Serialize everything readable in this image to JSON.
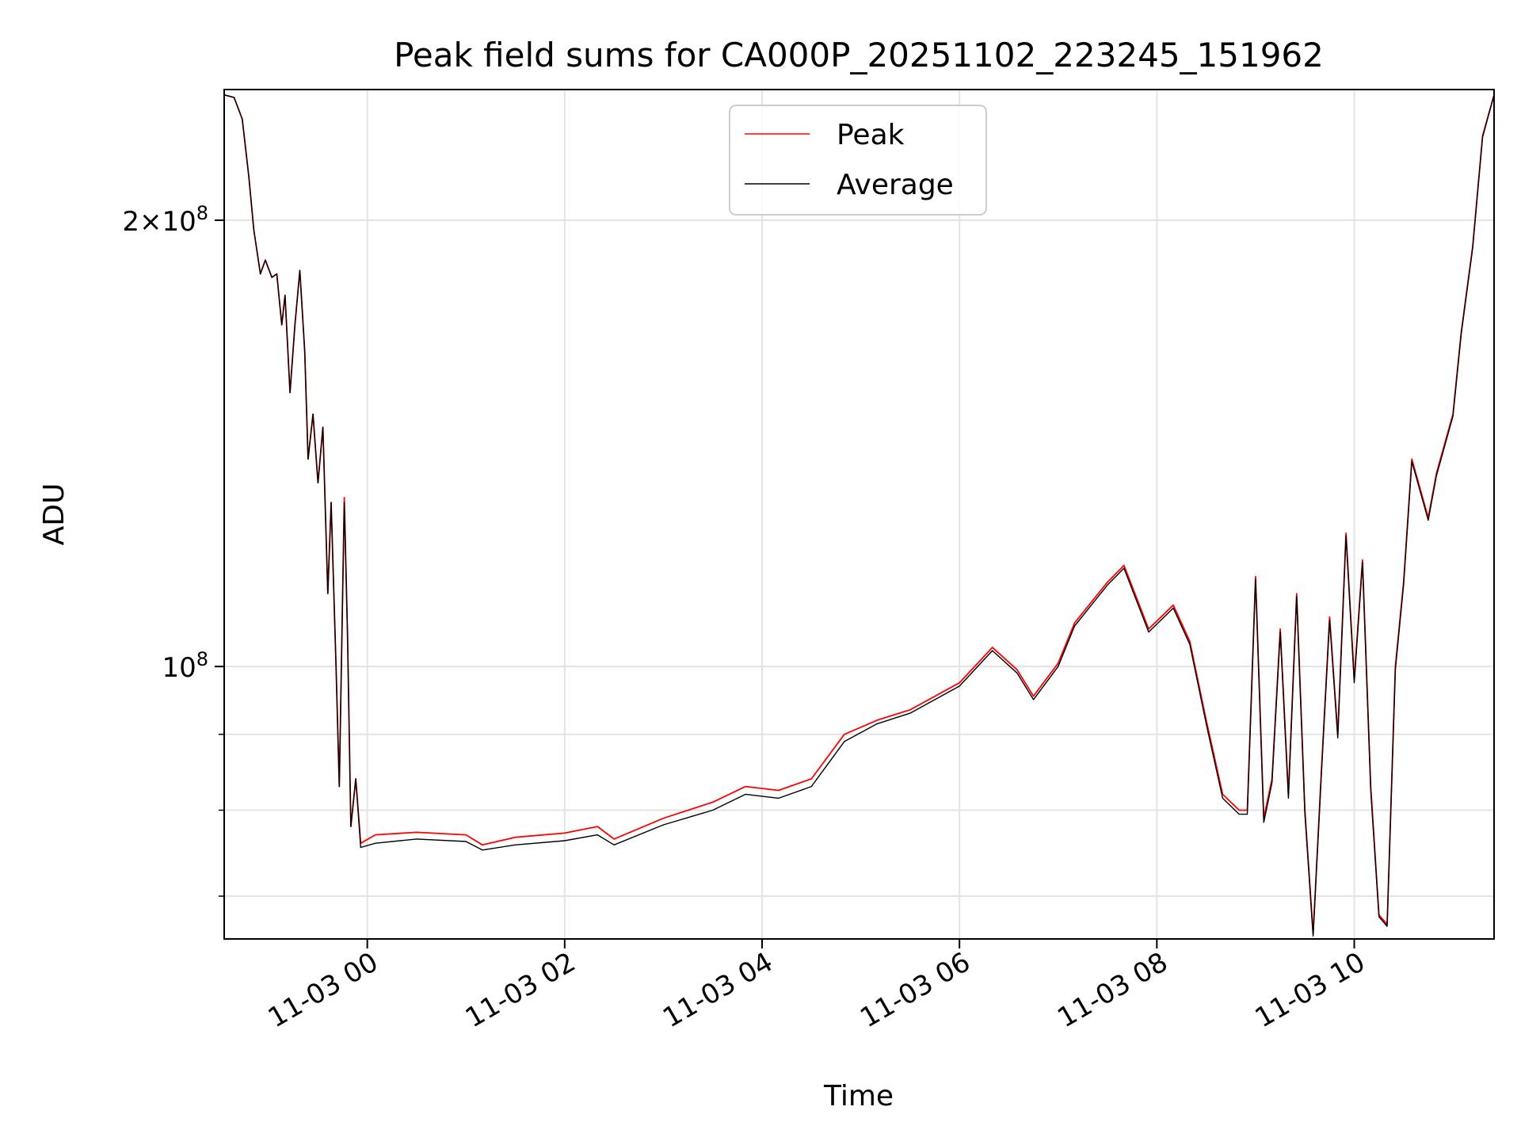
{
  "chart_data": {
    "type": "line",
    "title": "Peak field sums for CA000P_20251102_223245_151962",
    "xlabel": "Time",
    "ylabel": "ADU",
    "yscale": "log",
    "grid": true,
    "legend_position": "top-center",
    "xlim": [
      "2025-11-02 22:33",
      "2025-11-03 11:25"
    ],
    "ylim": [
      65500000,
      245000000
    ],
    "x_ticks": [
      {
        "t": "2025-11-03 00:00",
        "label": "11-03 00"
      },
      {
        "t": "2025-11-03 02:00",
        "label": "11-03 02"
      },
      {
        "t": "2025-11-03 04:00",
        "label": "11-03 04"
      },
      {
        "t": "2025-11-03 06:00",
        "label": "11-03 06"
      },
      {
        "t": "2025-11-03 08:00",
        "label": "11-03 08"
      },
      {
        "t": "2025-11-03 10:00",
        "label": "11-03 10"
      }
    ],
    "y_major_ticks": [
      {
        "value": 100000000,
        "base": "10",
        "exp": "8",
        "mantissa": ""
      },
      {
        "value": 200000000,
        "base": "10",
        "exp": "8",
        "mantissa": "2×"
      }
    ],
    "y_minor_gridlines": [
      70000000,
      80000000,
      90000000
    ],
    "series": [
      {
        "name": "Peak",
        "color": "#ff0000",
        "points": [
          [
            "2025-11-02 22:33",
            243000000
          ],
          [
            "2025-11-02 22:39",
            242000000
          ],
          [
            "2025-11-02 22:44",
            234000000
          ],
          [
            "2025-11-02 22:48",
            214000000
          ],
          [
            "2025-11-02 22:51",
            197000000
          ],
          [
            "2025-11-02 22:55",
            184000000
          ],
          [
            "2025-11-02 22:58",
            188000000
          ],
          [
            "2025-11-02 23:02",
            183000000
          ],
          [
            "2025-11-02 23:05",
            184000000
          ],
          [
            "2025-11-02 23:08",
            170000000
          ],
          [
            "2025-11-02 23:10",
            178000000
          ],
          [
            "2025-11-02 23:13",
            153000000
          ],
          [
            "2025-11-02 23:16",
            170000000
          ],
          [
            "2025-11-02 23:19",
            185000000
          ],
          [
            "2025-11-02 23:22",
            163000000
          ],
          [
            "2025-11-02 23:24",
            138000000
          ],
          [
            "2025-11-02 23:27",
            148000000
          ],
          [
            "2025-11-02 23:30",
            133000000
          ],
          [
            "2025-11-02 23:33",
            145000000
          ],
          [
            "2025-11-02 23:36",
            112000000
          ],
          [
            "2025-11-02 23:38",
            129000000
          ],
          [
            "2025-11-02 23:41",
            100000000
          ],
          [
            "2025-11-02 23:43",
            83000000
          ],
          [
            "2025-11-02 23:46",
            130000000
          ],
          [
            "2025-11-02 23:48",
            105000000
          ],
          [
            "2025-11-02 23:50",
            78000000
          ],
          [
            "2025-11-02 23:53",
            84000000
          ],
          [
            "2025-11-02 23:56",
            76000000
          ],
          [
            "2025-11-03 00:05",
            77000000
          ],
          [
            "2025-11-03 00:30",
            77300000
          ],
          [
            "2025-11-03 01:00",
            77000000
          ],
          [
            "2025-11-03 01:10",
            75800000
          ],
          [
            "2025-11-03 01:30",
            76700000
          ],
          [
            "2025-11-03 02:00",
            77200000
          ],
          [
            "2025-11-03 02:20",
            78000000
          ],
          [
            "2025-11-03 02:30",
            76500000
          ],
          [
            "2025-11-03 03:00",
            79000000
          ],
          [
            "2025-11-03 03:30",
            81000000
          ],
          [
            "2025-11-03 03:50",
            83000000
          ],
          [
            "2025-11-03 04:10",
            82500000
          ],
          [
            "2025-11-03 04:30",
            84000000
          ],
          [
            "2025-11-03 04:50",
            90000000
          ],
          [
            "2025-11-03 05:10",
            92000000
          ],
          [
            "2025-11-03 05:30",
            93500000
          ],
          [
            "2025-11-03 06:00",
            97500000
          ],
          [
            "2025-11-03 06:20",
            103000000
          ],
          [
            "2025-11-03 06:35",
            99500000
          ],
          [
            "2025-11-03 06:45",
            95500000
          ],
          [
            "2025-11-03 07:00",
            100500000
          ],
          [
            "2025-11-03 07:10",
            107000000
          ],
          [
            "2025-11-03 07:30",
            114000000
          ],
          [
            "2025-11-03 07:40",
            117000000
          ],
          [
            "2025-11-03 07:55",
            106000000
          ],
          [
            "2025-11-03 08:10",
            110000000
          ],
          [
            "2025-11-03 08:20",
            104000000
          ],
          [
            "2025-11-03 08:30",
            92000000
          ],
          [
            "2025-11-03 08:40",
            82000000
          ],
          [
            "2025-11-03 08:50",
            80000000
          ],
          [
            "2025-11-03 08:55",
            80000000
          ],
          [
            "2025-11-03 09:00",
            115000000
          ],
          [
            "2025-11-03 09:05",
            79000000
          ],
          [
            "2025-11-03 09:10",
            84000000
          ],
          [
            "2025-11-03 09:15",
            106000000
          ],
          [
            "2025-11-03 09:20",
            82000000
          ],
          [
            "2025-11-03 09:25",
            112000000
          ],
          [
            "2025-11-03 09:30",
            80000000
          ],
          [
            "2025-11-03 09:35",
            66000000
          ],
          [
            "2025-11-03 09:40",
            85000000
          ],
          [
            "2025-11-03 09:45",
            108000000
          ],
          [
            "2025-11-03 09:50",
            90000000
          ],
          [
            "2025-11-03 09:55",
            123000000
          ],
          [
            "2025-11-03 10:00",
            98000000
          ],
          [
            "2025-11-03 10:05",
            118000000
          ],
          [
            "2025-11-03 10:10",
            83000000
          ],
          [
            "2025-11-03 10:15",
            68000000
          ],
          [
            "2025-11-03 10:20",
            67000000
          ],
          [
            "2025-11-03 10:25",
            100000000
          ],
          [
            "2025-11-03 10:30",
            114000000
          ],
          [
            "2025-11-03 10:35",
            138000000
          ],
          [
            "2025-11-03 10:45",
            126000000
          ],
          [
            "2025-11-03 10:50",
            135000000
          ],
          [
            "2025-11-03 11:00",
            148000000
          ],
          [
            "2025-11-03 11:05",
            168000000
          ],
          [
            "2025-11-03 11:12",
            192000000
          ],
          [
            "2025-11-03 11:18",
            228000000
          ],
          [
            "2025-11-03 11:25",
            243000000
          ]
        ]
      },
      {
        "name": "Average",
        "color": "#000000",
        "points": [
          [
            "2025-11-02 22:33",
            243000000
          ],
          [
            "2025-11-02 22:39",
            242000000
          ],
          [
            "2025-11-02 22:44",
            234000000
          ],
          [
            "2025-11-02 22:48",
            214000000
          ],
          [
            "2025-11-02 22:51",
            197000000
          ],
          [
            "2025-11-02 22:55",
            184000000
          ],
          [
            "2025-11-02 22:58",
            188000000
          ],
          [
            "2025-11-02 23:02",
            183000000
          ],
          [
            "2025-11-02 23:05",
            184000000
          ],
          [
            "2025-11-02 23:08",
            170000000
          ],
          [
            "2025-11-02 23:10",
            178000000
          ],
          [
            "2025-11-02 23:13",
            153000000
          ],
          [
            "2025-11-02 23:16",
            170000000
          ],
          [
            "2025-11-02 23:19",
            185000000
          ],
          [
            "2025-11-02 23:22",
            163000000
          ],
          [
            "2025-11-02 23:24",
            138000000
          ],
          [
            "2025-11-02 23:27",
            148000000
          ],
          [
            "2025-11-02 23:30",
            133000000
          ],
          [
            "2025-11-02 23:33",
            145000000
          ],
          [
            "2025-11-02 23:36",
            112000000
          ],
          [
            "2025-11-02 23:38",
            129000000
          ],
          [
            "2025-11-02 23:41",
            100000000
          ],
          [
            "2025-11-02 23:43",
            83000000
          ],
          [
            "2025-11-02 23:46",
            129000000
          ],
          [
            "2025-11-02 23:48",
            105000000
          ],
          [
            "2025-11-02 23:50",
            78000000
          ],
          [
            "2025-11-02 23:53",
            84000000
          ],
          [
            "2025-11-02 23:56",
            75500000
          ],
          [
            "2025-11-03 00:05",
            76000000
          ],
          [
            "2025-11-03 00:30",
            76500000
          ],
          [
            "2025-11-03 01:00",
            76200000
          ],
          [
            "2025-11-03 01:10",
            75200000
          ],
          [
            "2025-11-03 01:30",
            75800000
          ],
          [
            "2025-11-03 02:00",
            76300000
          ],
          [
            "2025-11-03 02:20",
            77000000
          ],
          [
            "2025-11-03 02:30",
            75800000
          ],
          [
            "2025-11-03 03:00",
            78200000
          ],
          [
            "2025-11-03 03:30",
            80000000
          ],
          [
            "2025-11-03 03:50",
            82000000
          ],
          [
            "2025-11-03 04:10",
            81500000
          ],
          [
            "2025-11-03 04:30",
            83000000
          ],
          [
            "2025-11-03 04:50",
            89000000
          ],
          [
            "2025-11-03 05:10",
            91500000
          ],
          [
            "2025-11-03 05:30",
            93000000
          ],
          [
            "2025-11-03 06:00",
            97000000
          ],
          [
            "2025-11-03 06:20",
            102500000
          ],
          [
            "2025-11-03 06:35",
            99000000
          ],
          [
            "2025-11-03 06:45",
            95000000
          ],
          [
            "2025-11-03 07:00",
            100000000
          ],
          [
            "2025-11-03 07:10",
            106500000
          ],
          [
            "2025-11-03 07:30",
            113500000
          ],
          [
            "2025-11-03 07:40",
            116500000
          ],
          [
            "2025-11-03 07:55",
            105500000
          ],
          [
            "2025-11-03 08:10",
            109500000
          ],
          [
            "2025-11-03 08:20",
            103500000
          ],
          [
            "2025-11-03 08:30",
            91500000
          ],
          [
            "2025-11-03 08:40",
            81500000
          ],
          [
            "2025-11-03 08:50",
            79500000
          ],
          [
            "2025-11-03 08:55",
            79500000
          ],
          [
            "2025-11-03 09:00",
            114500000
          ],
          [
            "2025-11-03 09:05",
            78500000
          ],
          [
            "2025-11-03 09:10",
            83500000
          ],
          [
            "2025-11-03 09:15",
            105500000
          ],
          [
            "2025-11-03 09:20",
            81500000
          ],
          [
            "2025-11-03 09:25",
            111500000
          ],
          [
            "2025-11-03 09:30",
            79500000
          ],
          [
            "2025-11-03 09:35",
            65800000
          ],
          [
            "2025-11-03 09:40",
            84500000
          ],
          [
            "2025-11-03 09:45",
            107500000
          ],
          [
            "2025-11-03 09:50",
            89500000
          ],
          [
            "2025-11-03 09:55",
            122500000
          ],
          [
            "2025-11-03 10:00",
            97500000
          ],
          [
            "2025-11-03 10:05",
            117500000
          ],
          [
            "2025-11-03 10:10",
            82500000
          ],
          [
            "2025-11-03 10:15",
            67800000
          ],
          [
            "2025-11-03 10:20",
            66800000
          ],
          [
            "2025-11-03 10:25",
            99500000
          ],
          [
            "2025-11-03 10:30",
            113500000
          ],
          [
            "2025-11-03 10:35",
            137500000
          ],
          [
            "2025-11-03 10:45",
            125500000
          ],
          [
            "2025-11-03 10:50",
            134500000
          ],
          [
            "2025-11-03 11:00",
            147500000
          ],
          [
            "2025-11-03 11:05",
            167500000
          ],
          [
            "2025-11-03 11:12",
            191500000
          ],
          [
            "2025-11-03 11:18",
            227500000
          ],
          [
            "2025-11-03 11:25",
            243000000
          ]
        ]
      }
    ]
  }
}
